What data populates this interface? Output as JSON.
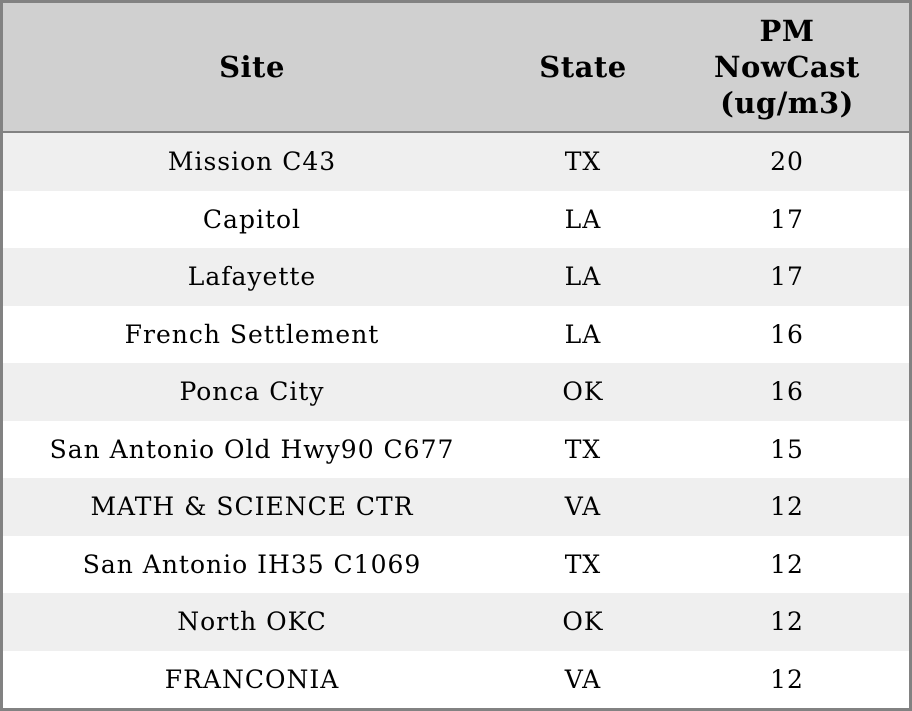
{
  "colors": {
    "outer_border": "#828282",
    "header_bg": "#d0d0d0",
    "header_separator": "#828282",
    "row_stripe_bg": "#efefef",
    "row_bg": "#ffffff",
    "text": "#000000"
  },
  "table": {
    "column_keys": [
      "site",
      "state",
      "pm"
    ],
    "header": {
      "site": "Site",
      "state": "State",
      "pm_line1": "PM",
      "pm_line2": "NowCast",
      "pm_line3": "(ug/m3)"
    },
    "rows": [
      {
        "site": "Mission C43",
        "state": "TX",
        "pm": "20"
      },
      {
        "site": "Capitol",
        "state": "LA",
        "pm": "17"
      },
      {
        "site": "Lafayette",
        "state": "LA",
        "pm": "17"
      },
      {
        "site": "French Settlement",
        "state": "LA",
        "pm": "16"
      },
      {
        "site": "Ponca City",
        "state": "OK",
        "pm": "16"
      },
      {
        "site": "San Antonio Old Hwy90 C677",
        "state": "TX",
        "pm": "15"
      },
      {
        "site": "MATH & SCIENCE CTR",
        "state": "VA",
        "pm": "12"
      },
      {
        "site": "San Antonio IH35 C1069",
        "state": "TX",
        "pm": "12"
      },
      {
        "site": "North OKC",
        "state": "OK",
        "pm": "12"
      },
      {
        "site": "FRANCONIA",
        "state": "VA",
        "pm": "12"
      }
    ]
  },
  "chart_data": {
    "type": "table",
    "columns": [
      "Site",
      "State",
      "PM NowCast (ug/m3)"
    ],
    "rows": [
      [
        "Mission C43",
        "TX",
        20
      ],
      [
        "Capitol",
        "LA",
        17
      ],
      [
        "Lafayette",
        "LA",
        17
      ],
      [
        "French Settlement",
        "LA",
        16
      ],
      [
        "Ponca City",
        "OK",
        16
      ],
      [
        "San Antonio Old Hwy90 C677",
        "TX",
        15
      ],
      [
        "MATH & SCIENCE CTR",
        "VA",
        12
      ],
      [
        "San Antonio IH35 C1069",
        "TX",
        12
      ],
      [
        "North OKC",
        "OK",
        12
      ],
      [
        "FRANCONIA",
        "VA",
        12
      ]
    ],
    "title": "",
    "layout_hints": {
      "zebra_striping": true,
      "all_cells_centered": true,
      "header_bold": true
    }
  }
}
